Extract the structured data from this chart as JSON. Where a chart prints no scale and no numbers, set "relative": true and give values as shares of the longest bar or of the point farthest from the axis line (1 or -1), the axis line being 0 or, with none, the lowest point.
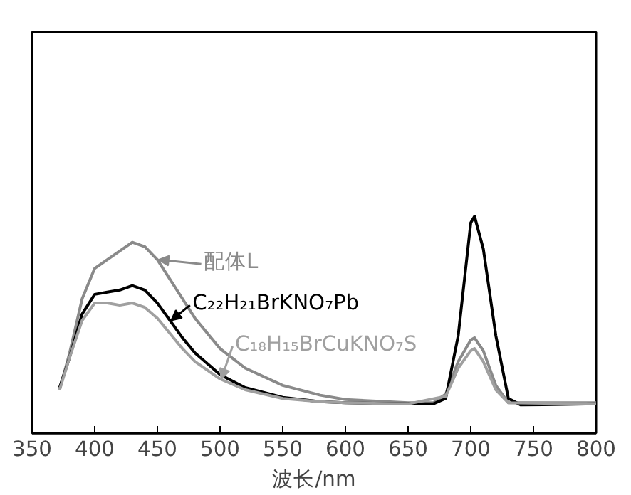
{
  "chart_data": {
    "type": "line",
    "relative": true,
    "xlabel": "波长/nm",
    "xlim": [
      350,
      800
    ],
    "xticks": [
      350,
      400,
      450,
      500,
      550,
      600,
      650,
      700,
      750,
      800
    ],
    "grid": false,
    "legend": "center",
    "tick_labels": "x",
    "series": [
      {
        "name": "配体L",
        "color": "#8a8a8a",
        "x": [
          372,
          380,
          390,
          400,
          410,
          420,
          430,
          440,
          450,
          460,
          470,
          480,
          500,
          520,
          550,
          580,
          600,
          650,
          670,
          680,
          690,
          700,
          703,
          710,
          720,
          730,
          800
        ],
        "values": [
          0.2,
          0.37,
          0.62,
          0.76,
          0.8,
          0.84,
          0.88,
          0.86,
          0.8,
          0.71,
          0.62,
          0.53,
          0.39,
          0.3,
          0.22,
          0.175,
          0.155,
          0.14,
          0.14,
          0.18,
          0.33,
          0.43,
          0.44,
          0.38,
          0.22,
          0.14,
          0.14
        ]
      },
      {
        "name": "C₂₂H₂₁BrKNO₇Pb",
        "color": "#000000",
        "x": [
          372,
          380,
          390,
          400,
          410,
          420,
          430,
          440,
          450,
          460,
          470,
          480,
          500,
          520,
          550,
          580,
          600,
          650,
          670,
          680,
          690,
          700,
          703,
          710,
          720,
          730,
          740,
          800
        ],
        "values": [
          0.21,
          0.35,
          0.55,
          0.64,
          0.65,
          0.66,
          0.68,
          0.66,
          0.6,
          0.52,
          0.44,
          0.37,
          0.27,
          0.21,
          0.165,
          0.145,
          0.14,
          0.135,
          0.135,
          0.16,
          0.45,
          0.97,
          1.0,
          0.85,
          0.45,
          0.16,
          0.13,
          0.135
        ]
      },
      {
        "name": "C₁₈H₁₅BrCuKNO₇S",
        "color": "#a0a0a0",
        "x": [
          372,
          380,
          390,
          400,
          410,
          420,
          430,
          440,
          450,
          460,
          470,
          480,
          500,
          520,
          550,
          580,
          600,
          650,
          680,
          690,
          700,
          703,
          710,
          720,
          730,
          800
        ],
        "values": [
          0.2,
          0.35,
          0.52,
          0.6,
          0.6,
          0.59,
          0.6,
          0.58,
          0.53,
          0.46,
          0.39,
          0.33,
          0.25,
          0.2,
          0.16,
          0.145,
          0.14,
          0.135,
          0.17,
          0.3,
          0.38,
          0.39,
          0.33,
          0.2,
          0.14,
          0.135
        ]
      }
    ]
  }
}
